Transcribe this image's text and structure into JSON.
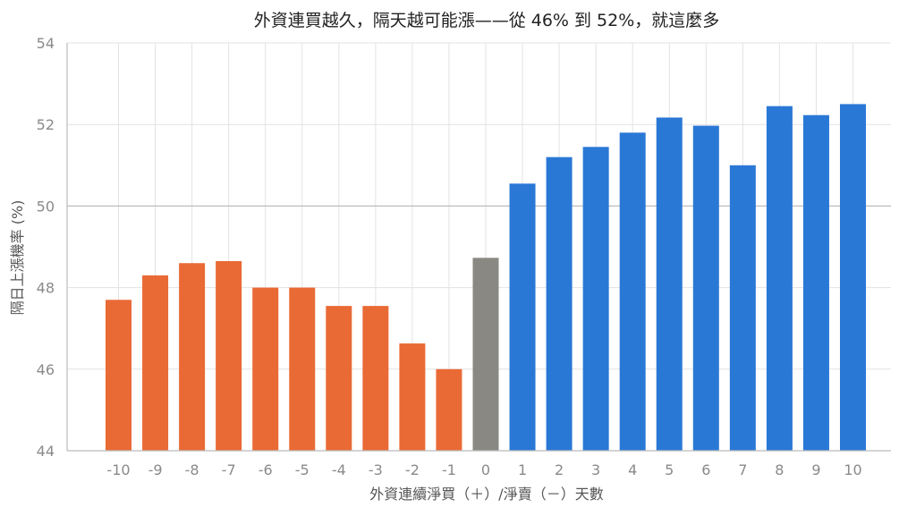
{
  "chart_data": {
    "type": "bar",
    "title": "外資連買越久，隔天越可能漲——從 46% 到 52%，就這麼多",
    "xlabel": "外資連續淨買（＋）/淨賣（－）天數",
    "ylabel": "隔日上漲機率 (%)",
    "ylim": [
      44,
      54
    ],
    "yticks": [
      "44",
      "46",
      "48",
      "50",
      "52",
      "54"
    ],
    "reference_line": 50,
    "grid": true,
    "categories": [
      "-10",
      "-9",
      "-8",
      "-7",
      "-6",
      "-5",
      "-4",
      "-3",
      "-2",
      "-1",
      "0",
      "1",
      "2",
      "3",
      "4",
      "5",
      "6",
      "7",
      "8",
      "9",
      "10"
    ],
    "values": [
      47.7,
      48.3,
      48.6,
      48.65,
      48.0,
      48.0,
      47.55,
      47.55,
      46.63,
      46.0,
      48.73,
      50.55,
      51.2,
      51.45,
      51.8,
      52.17,
      51.97,
      51.0,
      52.45,
      52.23,
      52.5
    ],
    "colors": {
      "negative": "#E96A35",
      "zero": "#8A8882",
      "positive": "#2A78D6",
      "grid": "#E3E3E3",
      "reference": "#BDBDBD",
      "axis": "#BBBBBB"
    }
  }
}
